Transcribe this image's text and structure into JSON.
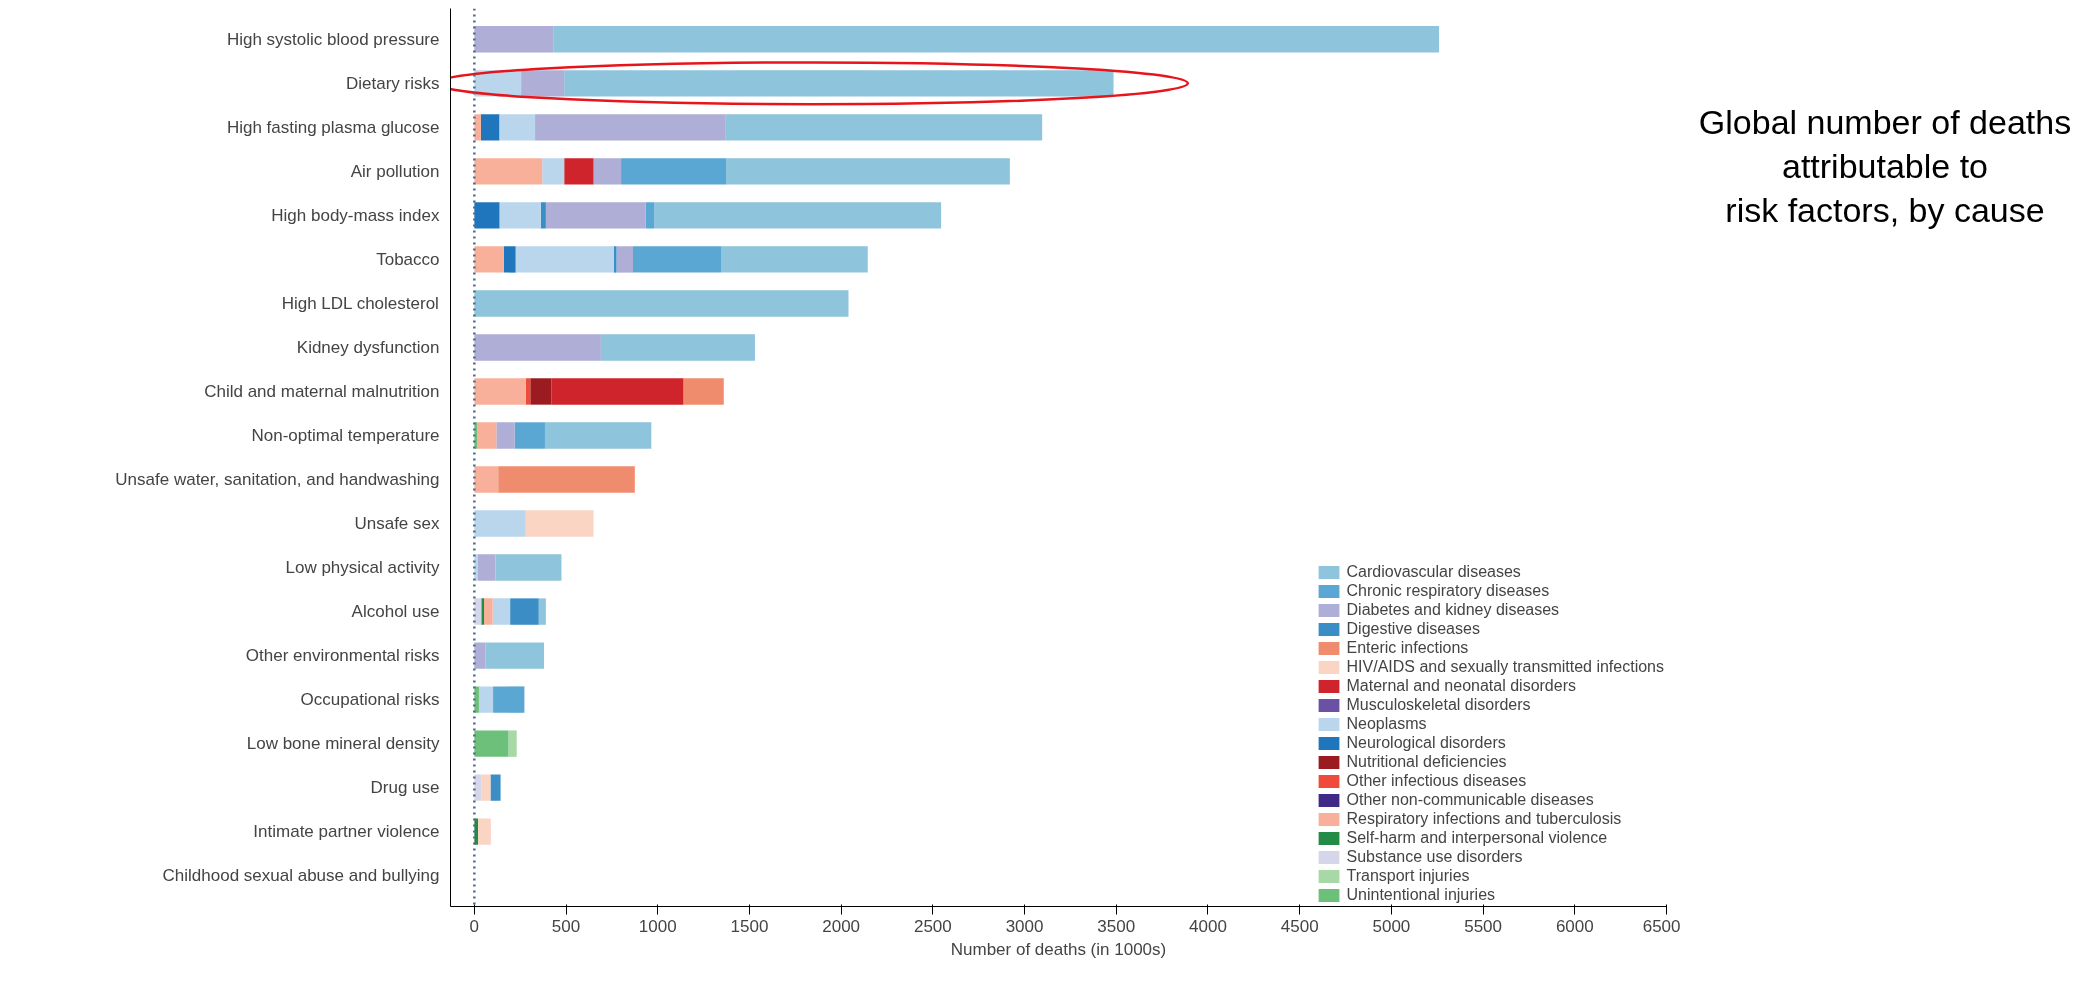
{
  "chart_data": {
    "type": "bar",
    "orientation": "horizontal",
    "title": "Global number of deaths attributable to risk factors, by cause",
    "xlabel": "Number of deaths (in 1000s)",
    "categories": [
      "High systolic blood pressure",
      "Dietary risks",
      "High fasting plasma glucose",
      "Air pollution",
      "High body-mass index",
      "Tobacco",
      "High LDL cholesterol",
      "Kidney dysfunction",
      "Child and maternal malnutrition",
      "Non-optimal temperature",
      "Unsafe water, sanitation, and handwashing",
      "Unsafe sex",
      "Low physical activity",
      "Alcohol use",
      "Other environmental risks",
      "Occupational risks",
      "Low bone mineral density",
      "Drug use",
      "Intimate partner violence",
      "Childhood sexual abuse and bullying"
    ],
    "xlim": [
      -130,
      6500
    ],
    "xticks": [
      0,
      500,
      1000,
      1500,
      2000,
      2500,
      3000,
      3500,
      4000,
      4500,
      5000,
      5500,
      6000,
      6500
    ],
    "legend": "bottom right",
    "ref_lines": [
      {
        "axis": "x",
        "value": 0,
        "label": null,
        "color": "#4a6b8a",
        "line_style": "dotted"
      }
    ],
    "series": [
      {
        "name": "Cardiovascular diseases",
        "color": "#8fc4dd",
        "values": [
          4830,
          2995,
          1725,
          1545,
          1565,
          800,
          2040,
          840,
          null,
          580,
          null,
          null,
          360,
          39,
          320,
          null,
          null,
          null,
          null,
          null
        ],
        "base": [
          430,
          490,
          1371,
          1375,
          980,
          1345,
          0,
          690,
          null,
          385,
          null,
          null,
          115,
          351,
          60,
          null,
          null,
          null,
          null,
          null
        ]
      },
      {
        "name": "Chronic respiratory diseases",
        "color": "#5aa7d3",
        "values": [
          null,
          null,
          null,
          575,
          45,
          480,
          null,
          null,
          null,
          165,
          null,
          null,
          null,
          null,
          null,
          171,
          null,
          null,
          null,
          null
        ],
        "base": [
          null,
          null,
          null,
          800,
          935,
          865,
          null,
          null,
          null,
          220,
          null,
          null,
          null,
          null,
          null,
          102,
          null,
          null,
          null,
          null
        ]
      },
      {
        "name": "Diabetes and kidney diseases",
        "color": "#aeaed6",
        "values": [
          430,
          235,
          1040,
          150,
          545,
          90,
          null,
          690,
          null,
          100,
          null,
          null,
          95,
          null,
          60,
          null,
          null,
          null,
          null,
          null
        ],
        "base": [
          0,
          255,
          331,
          650,
          390,
          775,
          null,
          0,
          null,
          120,
          null,
          null,
          20,
          null,
          0,
          null,
          null,
          null,
          null,
          null
        ]
      },
      {
        "name": "Digestive diseases",
        "color": "#3a8dc5",
        "values": [
          null,
          null,
          null,
          null,
          28,
          15,
          null,
          null,
          null,
          null,
          null,
          null,
          null,
          156,
          null,
          null,
          null,
          55,
          null,
          null
        ],
        "base": [
          null,
          null,
          null,
          null,
          362,
          760,
          null,
          null,
          null,
          null,
          null,
          null,
          null,
          195,
          null,
          null,
          null,
          88,
          null,
          null
        ]
      },
      {
        "name": "Enteric infections",
        "color": "#f08c6e",
        "values": [
          null,
          null,
          null,
          null,
          null,
          null,
          null,
          null,
          220,
          null,
          745,
          null,
          null,
          null,
          null,
          null,
          null,
          null,
          null,
          null
        ],
        "base": [
          null,
          null,
          null,
          null,
          null,
          null,
          null,
          null,
          1140,
          null,
          130,
          null,
          null,
          null,
          null,
          null,
          null,
          null,
          null,
          null
        ]
      },
      {
        "name": "HIV/AIDS and sexually transmitted infections",
        "color": "#fbd5c4",
        "values": [
          null,
          null,
          null,
          null,
          null,
          null,
          null,
          null,
          null,
          null,
          null,
          370,
          null,
          null,
          null,
          null,
          null,
          50,
          70,
          null
        ],
        "base": [
          null,
          null,
          null,
          null,
          null,
          null,
          null,
          null,
          null,
          null,
          null,
          280,
          null,
          null,
          null,
          null,
          null,
          38,
          20,
          null
        ]
      },
      {
        "name": "Maternal and neonatal disorders",
        "color": "#d0242c",
        "values": [
          null,
          null,
          null,
          160,
          null,
          null,
          null,
          null,
          720,
          null,
          null,
          null,
          null,
          null,
          null,
          null,
          null,
          null,
          null,
          null
        ],
        "base": [
          null,
          null,
          null,
          490,
          null,
          null,
          null,
          null,
          420,
          null,
          null,
          null,
          null,
          null,
          null,
          null,
          null,
          null,
          null,
          null
        ]
      },
      {
        "name": "Musculoskeletal disorders",
        "color": "#6a51a3",
        "values": [
          null,
          null,
          null,
          null,
          null,
          null,
          null,
          null,
          null,
          null,
          null,
          null,
          null,
          null,
          null,
          null,
          null,
          null,
          null,
          null
        ],
        "base": [
          null,
          null,
          null,
          null,
          null,
          null,
          null,
          null,
          null,
          null,
          null,
          null,
          null,
          null,
          null,
          null,
          null,
          null,
          null,
          null
        ]
      },
      {
        "name": "Neoplasms",
        "color": "#b9d6ec",
        "values": [
          null,
          255,
          195,
          120,
          225,
          535,
          null,
          null,
          null,
          null,
          null,
          280,
          20,
          95,
          null,
          77,
          null,
          null,
          null,
          null
        ],
        "base": [
          null,
          0,
          136,
          370,
          137,
          225,
          null,
          null,
          null,
          null,
          null,
          0,
          0,
          100,
          null,
          25,
          null,
          null,
          null,
          null
        ]
      },
      {
        "name": "Neurological disorders",
        "color": "#1f76bc",
        "values": [
          null,
          null,
          100,
          null,
          137,
          65,
          null,
          null,
          null,
          null,
          null,
          null,
          null,
          null,
          null,
          null,
          null,
          null,
          null,
          null
        ],
        "base": [
          null,
          null,
          36,
          null,
          0,
          160,
          null,
          null,
          null,
          null,
          null,
          null,
          null,
          null,
          null,
          null,
          null,
          null,
          null,
          null
        ]
      },
      {
        "name": "Nutritional deficiencies",
        "color": "#9a1c20",
        "values": [
          null,
          null,
          null,
          null,
          null,
          null,
          null,
          null,
          115,
          null,
          null,
          null,
          null,
          null,
          null,
          null,
          null,
          null,
          null,
          null
        ],
        "base": [
          null,
          null,
          null,
          null,
          null,
          null,
          null,
          null,
          305,
          null,
          null,
          null,
          null,
          null,
          null,
          null,
          null,
          null,
          null,
          null
        ]
      },
      {
        "name": "Other infectious diseases",
        "color": "#ef4a3a",
        "values": [
          null,
          null,
          null,
          null,
          null,
          null,
          null,
          null,
          25,
          null,
          null,
          null,
          null,
          null,
          null,
          null,
          null,
          null,
          null,
          null
        ],
        "base": [
          null,
          null,
          null,
          null,
          null,
          null,
          null,
          null,
          280,
          null,
          null,
          null,
          null,
          null,
          null,
          null,
          null,
          null,
          null,
          null
        ]
      },
      {
        "name": "Other non-communicable diseases",
        "color": "#3f2a88",
        "values": [
          null,
          null,
          null,
          null,
          null,
          null,
          null,
          null,
          null,
          null,
          null,
          null,
          null,
          null,
          null,
          null,
          null,
          null,
          null,
          null
        ],
        "base": [
          null,
          null,
          null,
          null,
          null,
          null,
          null,
          null,
          null,
          null,
          null,
          null,
          null,
          null,
          null,
          null,
          null,
          null,
          null,
          null
        ]
      },
      {
        "name": "Respiratory infections and tuberculosis",
        "color": "#f9b09a",
        "values": [
          null,
          null,
          36,
          370,
          null,
          160,
          null,
          null,
          280,
          105,
          130,
          null,
          null,
          47,
          null,
          null,
          null,
          null,
          null,
          null
        ],
        "base": [
          null,
          null,
          0,
          0,
          null,
          0,
          null,
          null,
          0,
          15,
          0,
          null,
          null,
          53,
          null,
          null,
          null,
          null,
          null,
          null
        ]
      },
      {
        "name": "Self-harm and interpersonal violence",
        "color": "#238b45",
        "values": [
          null,
          null,
          null,
          null,
          null,
          null,
          null,
          null,
          null,
          null,
          null,
          null,
          null,
          15,
          null,
          null,
          null,
          null,
          20,
          null
        ],
        "base": [
          null,
          null,
          null,
          null,
          null,
          null,
          null,
          null,
          null,
          null,
          null,
          null,
          null,
          38,
          null,
          null,
          null,
          null,
          0,
          null
        ]
      },
      {
        "name": "Substance use disorders",
        "color": "#d6d6ea",
        "values": [
          null,
          null,
          null,
          null,
          null,
          null,
          null,
          null,
          null,
          null,
          null,
          null,
          null,
          38,
          null,
          null,
          null,
          38,
          null,
          null
        ],
        "base": [
          null,
          null,
          null,
          null,
          null,
          null,
          null,
          null,
          null,
          null,
          null,
          null,
          null,
          0,
          null,
          null,
          null,
          0,
          null,
          null
        ]
      },
      {
        "name": "Transport injuries",
        "color": "#a8d8a6",
        "values": [
          null,
          null,
          null,
          null,
          null,
          null,
          null,
          null,
          null,
          null,
          null,
          null,
          null,
          null,
          null,
          null,
          45,
          null,
          null,
          null
        ],
        "base": [
          null,
          null,
          null,
          null,
          null,
          null,
          null,
          null,
          null,
          null,
          null,
          null,
          null,
          null,
          null,
          null,
          186,
          null,
          null,
          null
        ]
      },
      {
        "name": "Unintentional injuries",
        "color": "#6cc07a",
        "values": [
          null,
          null,
          null,
          null,
          null,
          null,
          null,
          null,
          null,
          15,
          null,
          null,
          null,
          null,
          null,
          25,
          186,
          null,
          null,
          null
        ],
        "base": [
          null,
          null,
          null,
          null,
          null,
          null,
          null,
          null,
          null,
          0,
          null,
          null,
          null,
          null,
          null,
          0,
          0,
          null,
          null,
          null
        ]
      }
    ]
  }
}
